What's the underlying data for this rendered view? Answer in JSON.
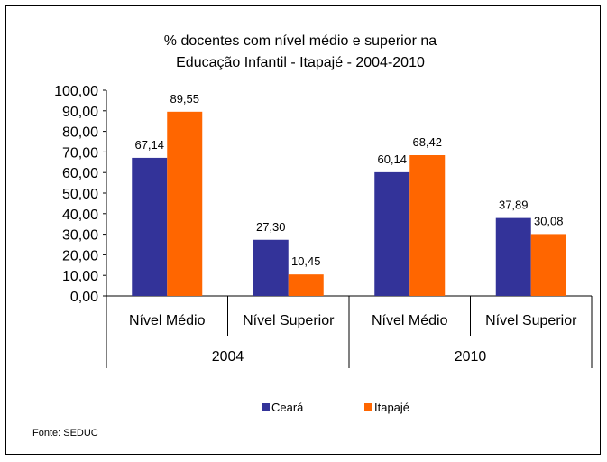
{
  "chart_data": {
    "type": "bar",
    "title_lines": [
      "% docentes com nível médio e superior na",
      "Educação Infantil - Itapajé - 2004-2010"
    ],
    "groups": [
      "2004",
      "2010"
    ],
    "categories": [
      "Nível Médio",
      "Nível Superior",
      "Nível Médio",
      "Nível Superior"
    ],
    "category_groups": [
      0,
      0,
      1,
      1
    ],
    "series": [
      {
        "name": "Ceará",
        "color": "#333399",
        "values": [
          67.14,
          27.3,
          60.14,
          37.89
        ],
        "labels": [
          "67,14",
          "27,30",
          "60,14",
          "37,89"
        ]
      },
      {
        "name": "Itapajé",
        "color": "#FF6600",
        "values": [
          89.55,
          10.45,
          68.42,
          30.08
        ],
        "labels": [
          "89,55",
          "10,45",
          "68,42",
          "30,08"
        ]
      }
    ],
    "y_ticks": [
      "0,00",
      "10,00",
      "20,00",
      "30,00",
      "40,00",
      "50,00",
      "60,00",
      "70,00",
      "80,00",
      "90,00",
      "100,00"
    ],
    "ylim": [
      0,
      100
    ],
    "grid": false,
    "legend_position": "bottom",
    "source_note": "Fonte: SEDUC"
  }
}
